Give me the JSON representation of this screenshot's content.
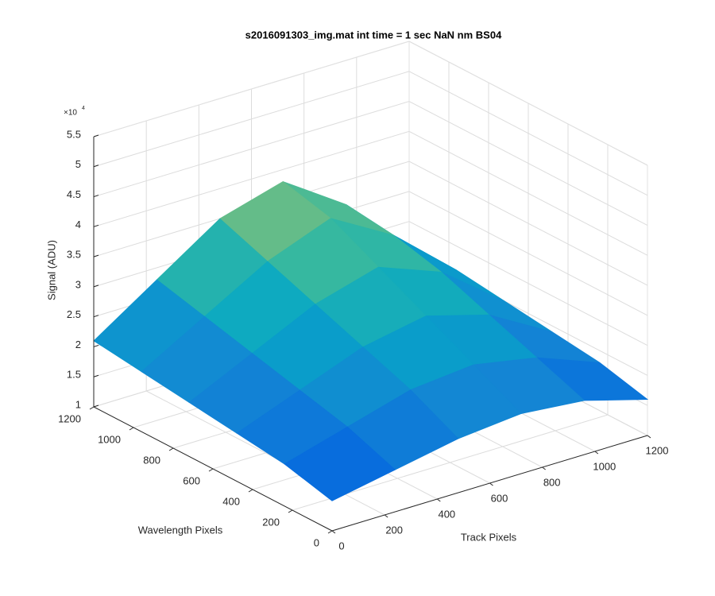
{
  "chart_data": {
    "type": "surface",
    "title": "s2016091303_img.mat int time = 1 sec  NaN nm BS04",
    "xlabel": "Track Pixels",
    "ylabel": "Wavelength Pixels",
    "zlabel": "Signal (ADU)",
    "zexponent": {
      "base": "×10",
      "power": "4"
    },
    "colormap": "parula",
    "grid": true,
    "x": [
      0,
      240,
      480,
      720,
      960,
      1200
    ],
    "y": [
      0,
      240,
      480,
      720,
      960,
      1200
    ],
    "z": [
      [
        15000,
        17000,
        19000,
        20000,
        19000,
        16000
      ],
      [
        17000,
        20000,
        23000,
        24000,
        22000,
        18000
      ],
      [
        18000,
        22000,
        26000,
        28000,
        25000,
        19000
      ],
      [
        19000,
        24000,
        29000,
        32000,
        28000,
        20000
      ],
      [
        20000,
        26000,
        32000,
        36000,
        30000,
        21000
      ],
      [
        21000,
        28000,
        35000,
        38000,
        31000,
        21000
      ]
    ],
    "xlim": [
      0,
      1200
    ],
    "ylim": [
      0,
      1200
    ],
    "zlim": [
      10000,
      55000
    ],
    "xticks": [
      0,
      200,
      400,
      600,
      800,
      1000,
      1200
    ],
    "yticks": [
      0,
      200,
      400,
      600,
      800,
      1000,
      1200
    ],
    "zticks": [
      {
        "value": 10000,
        "label": "1"
      },
      {
        "value": 15000,
        "label": "1.5"
      },
      {
        "value": 20000,
        "label": "2"
      },
      {
        "value": 25000,
        "label": "2.5"
      },
      {
        "value": 30000,
        "label": "3"
      },
      {
        "value": 35000,
        "label": "3.5"
      },
      {
        "value": 40000,
        "label": "4"
      },
      {
        "value": 45000,
        "label": "4.5"
      },
      {
        "value": 50000,
        "label": "5"
      },
      {
        "value": 55000,
        "label": "5.5"
      }
    ]
  }
}
